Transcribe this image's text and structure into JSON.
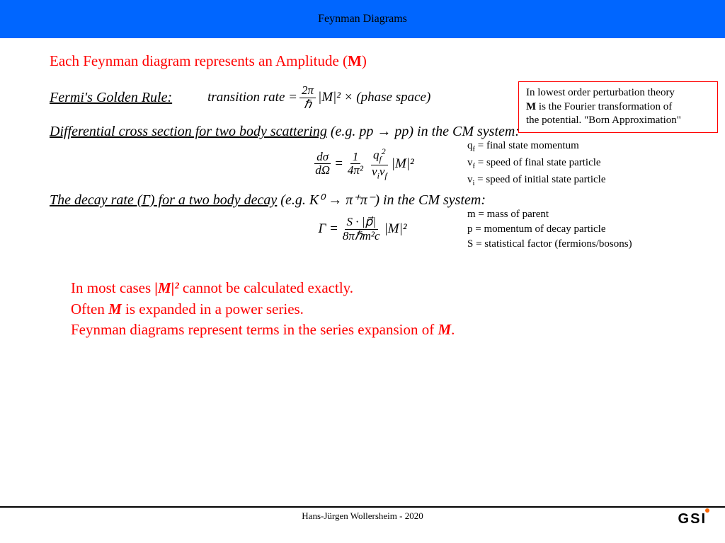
{
  "header": {
    "title": "Feynman Diagrams"
  },
  "line1": {
    "prefix": "Each Feynman diagram represents an Amplitude (",
    "M": "M",
    "suffix": ")"
  },
  "fermi": {
    "label": "Fermi's Golden Rule:",
    "lhs": "transition rate =",
    "frac_num": "2π",
    "frac_den": "ℏ",
    "rhs": "|M|² × (phase space)"
  },
  "callout": {
    "l1": "In lowest order perturbation theory",
    "l2a": "M",
    "l2b": " is the Fourier transformation of",
    "l3": "the potential. \"Born Approximation\""
  },
  "diff": {
    "label_u": "Differential cross section for two body scattering",
    "label_rest": " (e.g. pp → pp) in the CM system:",
    "f1_num": "dσ",
    "f1_den": "dΩ",
    "eq": " = ",
    "f2_num": "1",
    "f2_den": "4π²",
    "f3_num": "q",
    "f3_num_sub": "f",
    "f3_num_sup": "2",
    "f3_den_a": "v",
    "f3_den_a_sub": "i",
    "f3_den_b": "v",
    "f3_den_b_sub": "f",
    "rhs": " |M|²",
    "leg1a": "q",
    "leg1b": "f",
    "leg1c": " = final state momentum",
    "leg2a": "v",
    "leg2b": "f",
    "leg2c": " = speed of final state particle",
    "leg3a": "v",
    "leg3b": "i",
    "leg3c": " = speed of initial state particle"
  },
  "decay": {
    "label_u": "The decay rate (Γ) for a two body decay",
    "label_rest": " (e.g. K⁰ → π⁺π⁻) in the CM system:",
    "lhs": "Γ = ",
    "num": "S · |p⃗|",
    "den": "8πℏm²c",
    "rhs": " |M|²",
    "leg1": "m = mass of parent",
    "leg2": "p = momentum of decay particle",
    "leg3": "S = statistical factor (fermions/bosons)"
  },
  "redblock": {
    "l1a": "In most cases ",
    "l1b": "|M|²",
    "l1c": " cannot be calculated exactly.",
    "l2a": "Often ",
    "l2b": "M",
    "l2c": " is expanded in a power series.",
    "l3a": "Feynman diagrams represent terms in the series expansion of ",
    "l3b": "M",
    "l3c": "."
  },
  "footer": {
    "text": "Hans-Jürgen Wollersheim  - 2020"
  },
  "logo": {
    "text": "GSI"
  }
}
